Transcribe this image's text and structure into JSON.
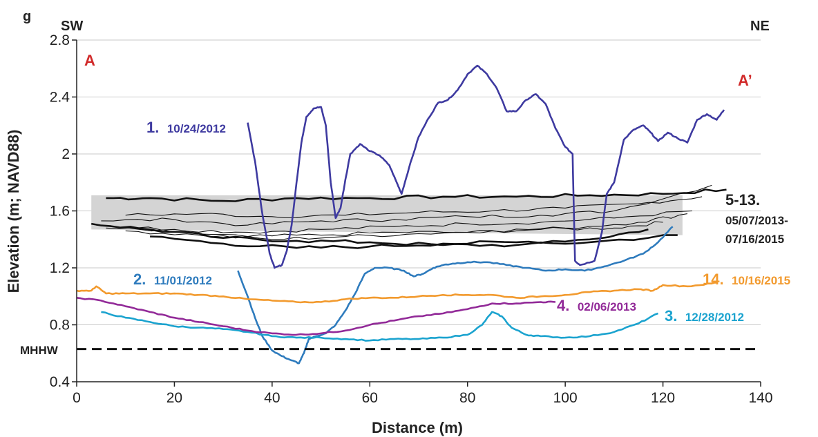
{
  "panel_label": "g",
  "left_direction": "SW",
  "right_direction": "NE",
  "profile_start": "A",
  "profile_end": "A’",
  "mhhw_label": "MHHW",
  "chart_data": {
    "type": "line",
    "xlabel": "Distance (m)",
    "ylabel": "Elevation (m; NAVD88)",
    "xlim": [
      0,
      140
    ],
    "ylim": [
      0.4,
      2.8
    ],
    "xticks": [
      0,
      20,
      40,
      60,
      80,
      100,
      120,
      140
    ],
    "yticks": [
      0.4,
      0.8,
      1.2,
      1.6,
      2.0,
      2.4,
      2.8
    ],
    "ytick_labels": [
      "0.4",
      "0.8",
      "1.2",
      "1.6",
      "2",
      "2.4",
      "2.8"
    ],
    "grid": "horizontal",
    "mhhw": 0.63,
    "envelope": {
      "x": [
        3,
        124
      ],
      "y_low": [
        1.47,
        1.43
      ],
      "y_high": [
        1.71,
        1.71
      ]
    },
    "series": [
      {
        "number": "1.",
        "date": "10/24/2012",
        "color": "#3e3aa0",
        "x": [
          35,
          36.5,
          38,
          39.5,
          40.5,
          42,
          43,
          44,
          45,
          46,
          47,
          48.5,
          50,
          51,
          52,
          53,
          54,
          55,
          56,
          58,
          60,
          62,
          64,
          65.5,
          66.5,
          68,
          70,
          72,
          74,
          76,
          78,
          80,
          82,
          84,
          86,
          88,
          90,
          92,
          94,
          96,
          98,
          100,
          101.5,
          102,
          103,
          106,
          107.5,
          108.5,
          110,
          112,
          114,
          116,
          117.5,
          119,
          121,
          123,
          125,
          127,
          129,
          131,
          132.5
        ],
        "y": [
          2.22,
          1.95,
          1.58,
          1.3,
          1.2,
          1.22,
          1.32,
          1.5,
          1.8,
          2.08,
          2.26,
          2.32,
          2.33,
          2.2,
          1.8,
          1.55,
          1.62,
          1.82,
          2.0,
          2.07,
          2.02,
          1.99,
          1.92,
          1.8,
          1.72,
          1.9,
          2.12,
          2.25,
          2.36,
          2.38,
          2.45,
          2.56,
          2.62,
          2.56,
          2.46,
          2.3,
          2.3,
          2.38,
          2.42,
          2.35,
          2.18,
          2.05,
          2.0,
          1.25,
          1.22,
          1.25,
          1.45,
          1.72,
          1.8,
          2.1,
          2.17,
          2.2,
          2.15,
          2.09,
          2.15,
          2.11,
          2.08,
          2.24,
          2.28,
          2.24,
          2.31
        ]
      },
      {
        "number": "2.",
        "date": "11/01/2012",
        "color": "#2e7bbd",
        "x": [
          33,
          35,
          36.5,
          38,
          40,
          42,
          44,
          45.5,
          46.5,
          47.5,
          49,
          51,
          53,
          55,
          57,
          59,
          61,
          64,
          67,
          69,
          71,
          73,
          75,
          77,
          80,
          84,
          88,
          92,
          96,
          100,
          104,
          108,
          112,
          116,
          119,
          122
        ],
        "y": [
          1.18,
          1.0,
          0.85,
          0.72,
          0.62,
          0.58,
          0.55,
          0.53,
          0.6,
          0.7,
          0.72,
          0.74,
          0.8,
          0.9,
          1.02,
          1.16,
          1.2,
          1.2,
          1.18,
          1.14,
          1.16,
          1.2,
          1.22,
          1.23,
          1.24,
          1.24,
          1.22,
          1.2,
          1.18,
          1.19,
          1.18,
          1.21,
          1.25,
          1.3,
          1.38,
          1.49
        ]
      },
      {
        "number": "3.",
        "date": "12/28/2012",
        "color": "#1ba3cf",
        "x": [
          5,
          10,
          15,
          20,
          25,
          30,
          35,
          40,
          45,
          50,
          55,
          60,
          65,
          70,
          75,
          80,
          83,
          85,
          87,
          89,
          92,
          95,
          100,
          105,
          110,
          115,
          119
        ],
        "y": [
          0.89,
          0.85,
          0.82,
          0.79,
          0.78,
          0.77,
          0.75,
          0.72,
          0.71,
          0.71,
          0.7,
          0.69,
          0.7,
          0.7,
          0.71,
          0.73,
          0.8,
          0.89,
          0.86,
          0.78,
          0.73,
          0.72,
          0.71,
          0.72,
          0.75,
          0.81,
          0.88
        ]
      },
      {
        "number": "4.",
        "date": "02/06/2013",
        "color": "#922a98",
        "x": [
          0,
          5,
          10,
          15,
          20,
          25,
          30,
          35,
          40,
          45,
          50,
          55,
          60,
          65,
          70,
          75,
          80,
          85,
          90,
          95,
          98
        ],
        "y": [
          0.99,
          0.97,
          0.93,
          0.89,
          0.85,
          0.82,
          0.79,
          0.76,
          0.74,
          0.73,
          0.74,
          0.76,
          0.8,
          0.83,
          0.86,
          0.88,
          0.91,
          0.95,
          0.95,
          0.96,
          0.96
        ]
      },
      {
        "number": "14.",
        "date": "10/16/2015",
        "color": "#f29a2e",
        "x": [
          0,
          3,
          4,
          6,
          10,
          15,
          20,
          25,
          30,
          35,
          40,
          45,
          50,
          55,
          60,
          65,
          70,
          75,
          80,
          85,
          90,
          95,
          100,
          105,
          110,
          115,
          118,
          120,
          125,
          130,
          131
        ],
        "y": [
          1.04,
          1.04,
          1.07,
          1.02,
          1.02,
          1.02,
          1.02,
          1.01,
          1.0,
          0.98,
          0.97,
          0.96,
          0.96,
          0.98,
          0.99,
          0.99,
          1.0,
          1.01,
          1.01,
          1.01,
          0.99,
          1.0,
          1.01,
          1.03,
          1.04,
          1.05,
          1.04,
          1.08,
          1.07,
          1.09,
          1.1
        ]
      }
    ],
    "group_series": {
      "number": "5-13.",
      "date_start": "05/07/2013-",
      "date_end": "07/16/2015",
      "color": "#111111",
      "lines": [
        {
          "x": [
            6,
            15,
            30,
            45,
            60,
            75,
            90,
            105,
            120,
            133
          ],
          "y": [
            1.69,
            1.69,
            1.67,
            1.69,
            1.69,
            1.7,
            1.7,
            1.71,
            1.72,
            1.75
          ]
        },
        {
          "x": [
            10,
            25,
            40,
            55,
            70,
            85,
            100,
            115,
            128
          ],
          "y": [
            1.57,
            1.58,
            1.56,
            1.57,
            1.59,
            1.6,
            1.62,
            1.65,
            1.7
          ]
        },
        {
          "x": [
            5,
            20,
            35,
            50,
            65,
            80,
            95,
            110,
            130
          ],
          "y": [
            1.53,
            1.54,
            1.5,
            1.53,
            1.54,
            1.56,
            1.57,
            1.6,
            1.78
          ]
        },
        {
          "x": [
            4,
            20,
            35,
            50,
            65,
            80,
            95,
            110,
            126
          ],
          "y": [
            1.5,
            1.47,
            1.45,
            1.47,
            1.49,
            1.51,
            1.52,
            1.55,
            1.6
          ]
        },
        {
          "x": [
            6,
            20,
            35,
            50,
            65,
            80,
            95,
            110,
            120
          ],
          "y": [
            1.48,
            1.45,
            1.42,
            1.43,
            1.45,
            1.45,
            1.47,
            1.48,
            1.52
          ]
        },
        {
          "x": [
            10,
            25,
            40,
            55,
            70,
            85,
            100,
            115,
            125
          ],
          "y": [
            1.46,
            1.43,
            1.4,
            1.42,
            1.44,
            1.46,
            1.48,
            1.52,
            1.58
          ]
        },
        {
          "x": [
            3,
            15,
            30,
            45,
            60,
            75,
            90,
            105,
            123
          ],
          "y": [
            1.51,
            1.47,
            1.41,
            1.39,
            1.38,
            1.36,
            1.36,
            1.38,
            1.43
          ]
        },
        {
          "x": [
            15,
            30,
            45,
            60,
            75,
            90,
            105,
            117
          ],
          "y": [
            1.42,
            1.37,
            1.34,
            1.35,
            1.37,
            1.38,
            1.4,
            1.47
          ]
        }
      ]
    }
  }
}
